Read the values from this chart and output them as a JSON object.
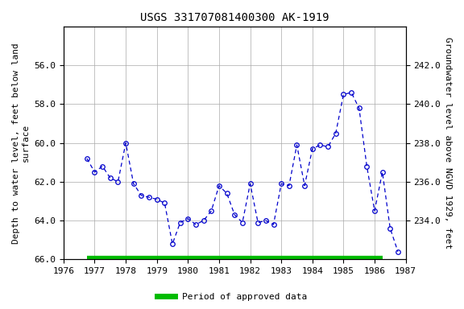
{
  "title": "USGS 331707081400300 AK-1919",
  "ylabel_left": "Depth to water level, feet below land\nsurface",
  "ylabel_right": "Groundwater level above NGVD 1929, feet",
  "ylim_left": [
    66.0,
    54.0
  ],
  "xlim": [
    1976,
    1987
  ],
  "xticks": [
    1976,
    1977,
    1978,
    1979,
    1980,
    1981,
    1982,
    1983,
    1984,
    1985,
    1986,
    1987
  ],
  "yticks_left": [
    56.0,
    58.0,
    60.0,
    62.0,
    64.0,
    66.0
  ],
  "yticks_right_labels": [
    "242.0",
    "240.0",
    "238.0",
    "236.0",
    "234.0"
  ],
  "yticks_right_pos": [
    56.0,
    58.0,
    60.0,
    62.0,
    64.0
  ],
  "data_x": [
    1976.75,
    1977.0,
    1977.25,
    1977.5,
    1977.75,
    1978.0,
    1978.25,
    1978.5,
    1978.75,
    1979.0,
    1979.25,
    1979.5,
    1979.75,
    1980.0,
    1980.25,
    1980.5,
    1980.75,
    1981.0,
    1981.25,
    1981.5,
    1981.75,
    1982.0,
    1982.25,
    1982.5,
    1982.75,
    1983.0,
    1983.25,
    1983.5,
    1983.75,
    1984.0,
    1984.25,
    1984.5,
    1984.75,
    1985.0,
    1985.25,
    1985.5,
    1985.75,
    1986.0,
    1986.25,
    1986.5,
    1986.75
  ],
  "data_y": [
    60.8,
    61.5,
    61.2,
    61.8,
    62.0,
    60.0,
    62.1,
    62.7,
    62.8,
    62.9,
    63.1,
    65.2,
    64.1,
    63.9,
    64.2,
    64.0,
    63.5,
    62.2,
    62.6,
    63.7,
    64.1,
    62.1,
    64.1,
    64.0,
    64.2,
    62.1,
    62.2,
    60.1,
    62.2,
    60.3,
    60.1,
    60.2,
    59.5,
    57.5,
    57.4,
    58.2,
    61.2,
    63.5,
    61.5,
    64.4,
    65.6
  ],
  "line_color": "#0000cc",
  "marker_color": "#0000cc",
  "approved_bar_color": "#00bb00",
  "approved_bar_xstart": 1976.75,
  "approved_bar_xend": 1986.25,
  "legend_label": "Period of approved data",
  "background_color": "#ffffff",
  "grid_color": "#aaaaaa",
  "title_fontsize": 10,
  "label_fontsize": 8,
  "tick_fontsize": 8
}
